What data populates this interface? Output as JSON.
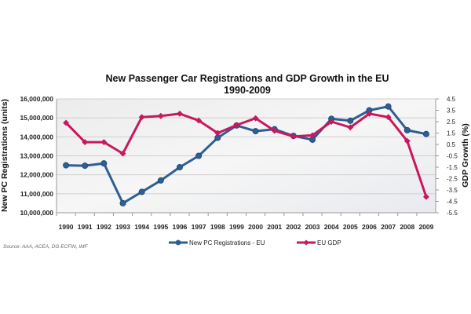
{
  "chart_data": {
    "type": "line",
    "title": "New Passenger Car Registrations and GDP Growth in the EU",
    "subtitle": "1990-2009",
    "ylabel": "New PC Registrations (units)",
    "y2label": "GDP Growth (%)",
    "source": "Source: AAA, ACEA, DG ECFIN, IMF",
    "ylim": [
      10000000,
      16000000
    ],
    "y2lim": [
      -5.5,
      4.5
    ],
    "yticks": [
      "10,000,000",
      "11,000,000",
      "12,000,000",
      "13,000,000",
      "14,000,000",
      "15,000,000",
      "16,000,000"
    ],
    "y2ticks": [
      "-5.5",
      "-4.5",
      "-3.5",
      "-2.5",
      "-1.5",
      "-0.5",
      "0.5",
      "1.5",
      "2.5",
      "3.5",
      "4.5"
    ],
    "grid": true,
    "legend": "bottom",
    "categories": [
      "1990",
      "1991",
      "1992",
      "1993",
      "1994",
      "1995",
      "1996",
      "1997",
      "1998",
      "1999",
      "2000",
      "2001",
      "2002",
      "2003",
      "2004",
      "2005",
      "2006",
      "2007",
      "2008",
      "2009"
    ],
    "series": [
      {
        "name": "New PC Registrations - EU",
        "axis": "left",
        "color": "#2e5f94",
        "values": [
          12500000,
          12480000,
          12600000,
          10500000,
          11100000,
          11700000,
          12400000,
          13000000,
          13950000,
          14600000,
          14300000,
          14400000,
          14050000,
          13850000,
          14950000,
          14850000,
          15400000,
          15600000,
          14350000,
          14150000
        ]
      },
      {
        "name": "EU GDP",
        "axis": "right",
        "color": "#c8185e",
        "values": [
          2.4,
          0.7,
          0.7,
          -0.3,
          2.9,
          3.0,
          3.2,
          2.6,
          1.5,
          2.2,
          2.8,
          1.7,
          1.2,
          1.3,
          2.5,
          2.0,
          3.2,
          2.9,
          0.8,
          -4.1
        ]
      }
    ]
  }
}
